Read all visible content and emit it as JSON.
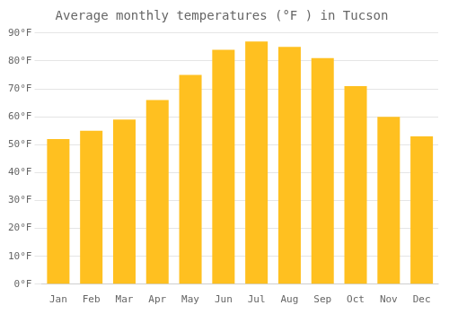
{
  "chart_data": {
    "type": "bar",
    "title": "Average monthly temperatures (°F ) in Tucson",
    "categories": [
      "Jan",
      "Feb",
      "Mar",
      "Apr",
      "May",
      "Jun",
      "Jul",
      "Aug",
      "Sep",
      "Oct",
      "Nov",
      "Dec"
    ],
    "values": [
      52,
      55,
      59,
      66,
      75,
      84,
      87,
      85,
      81,
      71,
      60,
      53
    ],
    "color": "#FFC020",
    "ylim": [
      0,
      90
    ],
    "yticks": [
      {
        "value": 0,
        "label": "0°F"
      },
      {
        "value": 10,
        "label": "10°F"
      },
      {
        "value": 20,
        "label": "20°F"
      },
      {
        "value": 30,
        "label": "30°F"
      },
      {
        "value": 40,
        "label": "40°F"
      },
      {
        "value": 50,
        "label": "50°F"
      },
      {
        "value": 60,
        "label": "60°F"
      },
      {
        "value": 70,
        "label": "70°F"
      },
      {
        "value": 80,
        "label": "80°F"
      },
      {
        "value": 90,
        "label": "90°F"
      }
    ],
    "grid": true
  }
}
